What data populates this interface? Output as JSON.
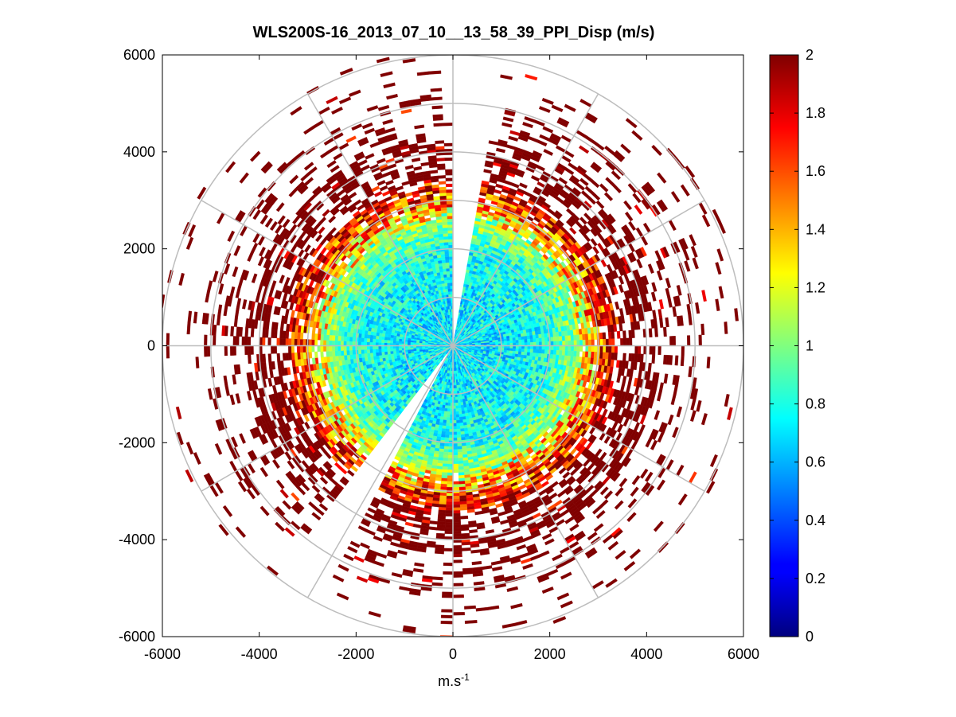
{
  "chart_data": {
    "type": "heatmap",
    "subtype": "polar-ppi",
    "title": "WLS200S-16_2013_07_10__13_58_39_PPI_Disp (m/s)",
    "xlabel_base": "m.s",
    "xlabel_exp": "-1",
    "ylabel": "",
    "xlim": [
      -6000,
      6000
    ],
    "ylim": [
      -6000,
      6000
    ],
    "x_ticks": [
      "-6000",
      "-4000",
      "-2000",
      "0",
      "2000",
      "4000",
      "6000"
    ],
    "y_ticks": [
      "6000",
      "4000",
      "2000",
      "0",
      "-2000",
      "-4000",
      "-6000"
    ],
    "x_tick_values": [
      -6000,
      -4000,
      -2000,
      0,
      2000,
      4000,
      6000
    ],
    "y_tick_values": [
      6000,
      4000,
      2000,
      0,
      -2000,
      -4000,
      -6000
    ],
    "range_rings": [
      1000,
      2000,
      3000,
      4000,
      5000,
      6000
    ],
    "spokes_deg": [
      0,
      30,
      60,
      90,
      120,
      150,
      180,
      210,
      240,
      270,
      300,
      330
    ],
    "colorbar": {
      "range": [
        0,
        2
      ],
      "ticks": [
        "2",
        "1.8",
        "1.6",
        "1.4",
        "1.2",
        "1",
        "0.8",
        "0.6",
        "0.4",
        "0.2",
        "0"
      ],
      "tick_values": [
        2,
        1.8,
        1.6,
        1.4,
        1.2,
        1,
        0.8,
        0.6,
        0.4,
        0.2,
        0
      ],
      "colormap": "jet"
    },
    "data_profile": {
      "description": "Dispersion increases with range: ~0.6-0.9 m/s near center, ~1.0-1.4 at 2500-3000 m, saturated 2 m/s beyond ~3000 m, sparse returns out to ~6000 m",
      "radial_mean_by_range_m": [
        [
          0,
          0.7
        ],
        [
          1000,
          0.72
        ],
        [
          2000,
          0.8
        ],
        [
          2500,
          1.05
        ],
        [
          3000,
          1.6
        ],
        [
          3500,
          2.0
        ],
        [
          6000,
          2.0
        ]
      ],
      "gap_sectors_deg": [
        [
          0,
          8
        ],
        [
          206,
          216
        ]
      ]
    }
  }
}
